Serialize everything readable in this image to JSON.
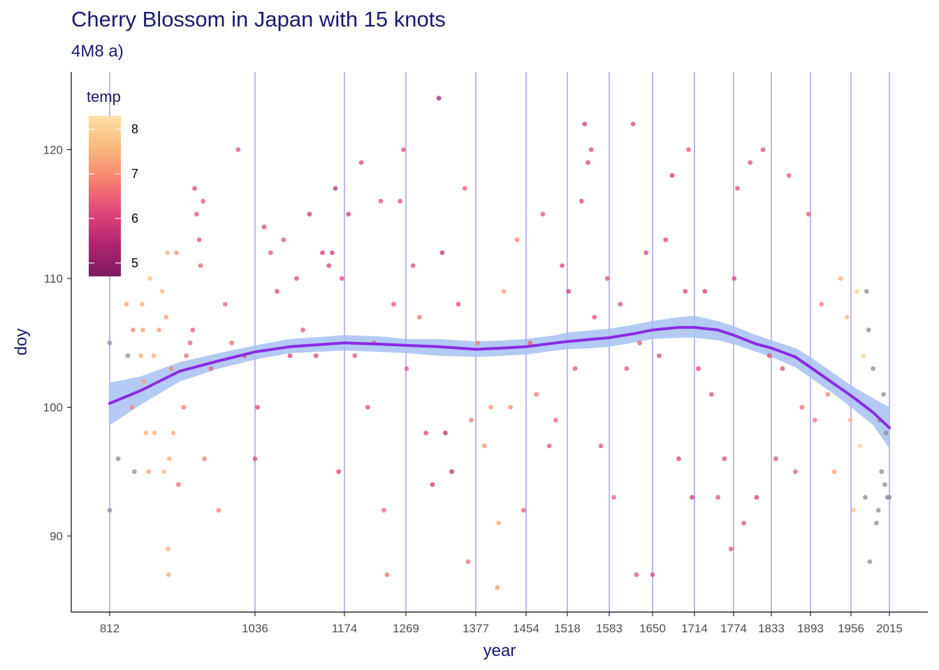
{
  "title": "Cherry Blossom in Japan with 15 knots",
  "subtitle": "4M8 a)",
  "chart_data": {
    "type": "scatter",
    "xlabel": "year",
    "ylabel": "doy",
    "xlim": [
      812,
      2015
    ],
    "ylim": [
      84.5,
      126.5
    ],
    "x_ticks": [
      812,
      1036,
      1174,
      1269,
      1377,
      1454,
      1518,
      1583,
      1650,
      1714,
      1774,
      1833,
      1893,
      1956,
      2015
    ],
    "y_ticks": [
      90,
      100,
      110,
      120
    ],
    "knots": [
      812,
      1036,
      1174,
      1269,
      1377,
      1454,
      1518,
      1583,
      1650,
      1714,
      1774,
      1833,
      1893,
      1956,
      2015
    ],
    "grid": false,
    "legend": {
      "title": "temp",
      "placement": "top-left",
      "min": 4.7,
      "max": 8.3,
      "labels": [
        5,
        6,
        7,
        8
      ]
    },
    "colors": {
      "knot_line": "#9b8ff0",
      "band": "#a7c1f2",
      "fit_line": "#8a2be2",
      "missing_temp": "#8c8c8c",
      "gradient": [
        "#7b1b63",
        "#b0256f",
        "#e0457a",
        "#f6806e",
        "#f9b87c",
        "#fde0a6"
      ]
    },
    "fit": [
      [
        812,
        100.3
      ],
      [
        860,
        101.3
      ],
      [
        920,
        102.8
      ],
      [
        980,
        103.6
      ],
      [
        1036,
        104.3
      ],
      [
        1090,
        104.7
      ],
      [
        1174,
        105.0
      ],
      [
        1230,
        104.9
      ],
      [
        1269,
        104.8
      ],
      [
        1320,
        104.7
      ],
      [
        1377,
        104.5
      ],
      [
        1420,
        104.6
      ],
      [
        1454,
        104.7
      ],
      [
        1500,
        105.0
      ],
      [
        1518,
        105.1
      ],
      [
        1560,
        105.3
      ],
      [
        1583,
        105.4
      ],
      [
        1620,
        105.7
      ],
      [
        1650,
        106.0
      ],
      [
        1690,
        106.2
      ],
      [
        1714,
        106.2
      ],
      [
        1750,
        106.0
      ],
      [
        1774,
        105.6
      ],
      [
        1810,
        104.9
      ],
      [
        1833,
        104.6
      ],
      [
        1870,
        103.9
      ],
      [
        1893,
        103.1
      ],
      [
        1930,
        101.8
      ],
      [
        1956,
        100.9
      ],
      [
        1990,
        99.6
      ],
      [
        2015,
        98.4
      ]
    ],
    "band_upper": [
      [
        812,
        101.9
      ],
      [
        860,
        102.4
      ],
      [
        920,
        103.5
      ],
      [
        980,
        104.2
      ],
      [
        1036,
        104.8
      ],
      [
        1090,
        105.3
      ],
      [
        1174,
        105.6
      ],
      [
        1230,
        105.5
      ],
      [
        1269,
        105.3
      ],
      [
        1320,
        105.3
      ],
      [
        1377,
        105.1
      ],
      [
        1420,
        105.2
      ],
      [
        1454,
        105.3
      ],
      [
        1500,
        105.6
      ],
      [
        1518,
        105.8
      ],
      [
        1560,
        106.0
      ],
      [
        1583,
        106.1
      ],
      [
        1620,
        106.4
      ],
      [
        1650,
        106.7
      ],
      [
        1690,
        107.0
      ],
      [
        1714,
        107.1
      ],
      [
        1750,
        106.7
      ],
      [
        1774,
        106.3
      ],
      [
        1810,
        105.6
      ],
      [
        1833,
        105.2
      ],
      [
        1870,
        104.6
      ],
      [
        1893,
        103.9
      ],
      [
        1930,
        102.6
      ],
      [
        1956,
        101.7
      ],
      [
        1990,
        100.7
      ],
      [
        2015,
        100.0
      ]
    ],
    "band_lower": [
      [
        812,
        98.6
      ],
      [
        860,
        100.2
      ],
      [
        920,
        102.0
      ],
      [
        980,
        103.0
      ],
      [
        1036,
        103.7
      ],
      [
        1090,
        104.2
      ],
      [
        1174,
        104.4
      ],
      [
        1230,
        104.3
      ],
      [
        1269,
        104.2
      ],
      [
        1320,
        104.0
      ],
      [
        1377,
        103.9
      ],
      [
        1420,
        104.0
      ],
      [
        1454,
        104.1
      ],
      [
        1500,
        104.4
      ],
      [
        1518,
        104.5
      ],
      [
        1560,
        104.6
      ],
      [
        1583,
        104.7
      ],
      [
        1620,
        105.0
      ],
      [
        1650,
        105.3
      ],
      [
        1690,
        105.4
      ],
      [
        1714,
        105.4
      ],
      [
        1750,
        105.2
      ],
      [
        1774,
        104.9
      ],
      [
        1810,
        104.3
      ],
      [
        1833,
        103.9
      ],
      [
        1870,
        103.1
      ],
      [
        1893,
        102.3
      ],
      [
        1930,
        101.0
      ],
      [
        1956,
        100.0
      ],
      [
        1990,
        98.6
      ],
      [
        2015,
        96.8
      ]
    ],
    "points": [
      [
        812,
        92,
        null
      ],
      [
        812,
        105,
        null
      ],
      [
        825,
        96,
        null
      ],
      [
        838,
        108,
        7.3
      ],
      [
        840,
        104,
        null
      ],
      [
        846,
        100,
        7.0
      ],
      [
        848,
        106,
        6.9
      ],
      [
        850,
        95,
        null
      ],
      [
        860,
        104,
        7.4
      ],
      [
        862,
        108,
        7.5
      ],
      [
        863,
        106,
        7.3
      ],
      [
        865,
        102,
        7.3
      ],
      [
        868,
        98,
        7.5
      ],
      [
        872,
        95,
        7.3
      ],
      [
        874,
        110,
        7.6
      ],
      [
        880,
        104,
        7.5
      ],
      [
        881,
        98,
        7.5
      ],
      [
        888,
        106,
        7.2
      ],
      [
        893,
        109,
        7.5
      ],
      [
        896,
        95,
        7.6
      ],
      [
        899,
        107,
        7.2
      ],
      [
        901,
        112,
        7.5
      ],
      [
        902,
        89,
        7.4
      ],
      [
        903,
        87,
        7.4
      ],
      [
        904,
        96,
        7.5
      ],
      [
        907,
        103,
        6.9
      ],
      [
        910,
        98,
        7.4
      ],
      [
        915,
        112,
        7.1
      ],
      [
        918,
        94,
        6.6
      ],
      [
        926,
        100,
        6.8
      ],
      [
        930,
        104,
        6.6
      ],
      [
        936,
        105,
        6.5
      ],
      [
        940,
        106,
        6.4
      ],
      [
        943,
        117,
        6.1
      ],
      [
        946,
        115,
        6.3
      ],
      [
        950,
        113,
        6.3
      ],
      [
        952,
        111,
        6.5
      ],
      [
        956,
        116,
        6.3
      ],
      [
        958,
        96,
        6.8
      ],
      [
        968,
        103,
        6.5
      ],
      [
        980,
        92,
        6.8
      ],
      [
        990,
        108,
        6.5
      ],
      [
        1000,
        105,
        6.6
      ],
      [
        1010,
        120,
        6.3
      ],
      [
        1020,
        104,
        6.2
      ],
      [
        1036,
        96,
        6.2
      ],
      [
        1040,
        100,
        6.1
      ],
      [
        1050,
        114,
        6.0
      ],
      [
        1060,
        112,
        6.3
      ],
      [
        1070,
        109,
        6.1
      ],
      [
        1080,
        113,
        6.2
      ],
      [
        1090,
        104,
        6.0
      ],
      [
        1100,
        110,
        6.2
      ],
      [
        1110,
        106,
        6.3
      ],
      [
        1120,
        115,
        5.8
      ],
      [
        1130,
        104,
        6.1
      ],
      [
        1140,
        112,
        5.9
      ],
      [
        1150,
        111,
        6.0
      ],
      [
        1155,
        112,
        5.9
      ],
      [
        1160,
        117,
        5.6
      ],
      [
        1165,
        95,
        6.0
      ],
      [
        1170,
        110,
        6.3
      ],
      [
        1180,
        115,
        5.9
      ],
      [
        1190,
        104,
        6.4
      ],
      [
        1200,
        119,
        6.0
      ],
      [
        1210,
        100,
        6.2
      ],
      [
        1220,
        105,
        6.4
      ],
      [
        1230,
        116,
        6.3
      ],
      [
        1235,
        92,
        6.5
      ],
      [
        1240,
        87,
        6.6
      ],
      [
        1250,
        108,
        6.2
      ],
      [
        1260,
        116,
        6.3
      ],
      [
        1265,
        120,
        6.3
      ],
      [
        1270,
        103,
        6.4
      ],
      [
        1280,
        111,
        6.2
      ],
      [
        1290,
        107,
        6.6
      ],
      [
        1300,
        98,
        6.0
      ],
      [
        1310,
        94,
        5.8
      ],
      [
        1320,
        124,
        5.3
      ],
      [
        1325,
        112,
        5.6
      ],
      [
        1330,
        98,
        5.5
      ],
      [
        1340,
        95,
        5.6
      ],
      [
        1350,
        108,
        6.1
      ],
      [
        1360,
        117,
        6.4
      ],
      [
        1365,
        88,
        6.6
      ],
      [
        1370,
        99,
        6.8
      ],
      [
        1380,
        105,
        6.9
      ],
      [
        1390,
        97,
        7.1
      ],
      [
        1400,
        100,
        7.1
      ],
      [
        1410,
        86,
        7.2
      ],
      [
        1412,
        91,
        7.3
      ],
      [
        1420,
        109,
        7.2
      ],
      [
        1430,
        100,
        7.0
      ],
      [
        1440,
        113,
        6.9
      ],
      [
        1450,
        92,
        6.5
      ],
      [
        1460,
        105,
        6.5
      ],
      [
        1470,
        101,
        6.7
      ],
      [
        1480,
        115,
        6.3
      ],
      [
        1490,
        97,
        6.3
      ],
      [
        1500,
        99,
        6.4
      ],
      [
        1510,
        111,
        6.1
      ],
      [
        1520,
        109,
        5.9
      ],
      [
        1530,
        103,
        6.3
      ],
      [
        1540,
        116,
        6.1
      ],
      [
        1545,
        122,
        5.9
      ],
      [
        1550,
        119,
        6.0
      ],
      [
        1555,
        120,
        6.1
      ],
      [
        1560,
        107,
        6.2
      ],
      [
        1570,
        97,
        6.3
      ],
      [
        1580,
        110,
        6.3
      ],
      [
        1590,
        93,
        6.4
      ],
      [
        1600,
        108,
        6.2
      ],
      [
        1610,
        103,
        6.3
      ],
      [
        1620,
        122,
        6.1
      ],
      [
        1625,
        87,
        6.2
      ],
      [
        1630,
        105,
        6.3
      ],
      [
        1640,
        112,
        6.1
      ],
      [
        1650,
        87,
        6.1
      ],
      [
        1660,
        104,
        6.1
      ],
      [
        1670,
        113,
        6.0
      ],
      [
        1680,
        118,
        5.8
      ],
      [
        1690,
        96,
        6.0
      ],
      [
        1700,
        109,
        6.1
      ],
      [
        1705,
        120,
        6.3
      ],
      [
        1710,
        93,
        6.0
      ],
      [
        1720,
        103,
        6.1
      ],
      [
        1730,
        109,
        5.9
      ],
      [
        1740,
        101,
        6.2
      ],
      [
        1750,
        93,
        6.3
      ],
      [
        1760,
        96,
        6.1
      ],
      [
        1770,
        89,
        6.3
      ],
      [
        1775,
        110,
        6.1
      ],
      [
        1780,
        117,
        6.2
      ],
      [
        1790,
        91,
        6.3
      ],
      [
        1800,
        119,
        6.2
      ],
      [
        1810,
        93,
        6.0
      ],
      [
        1820,
        120,
        6.1
      ],
      [
        1830,
        104,
        6.1
      ],
      [
        1840,
        96,
        6.2
      ],
      [
        1850,
        103,
        6.2
      ],
      [
        1860,
        118,
        6.3
      ],
      [
        1870,
        95,
        6.5
      ],
      [
        1880,
        100,
        6.6
      ],
      [
        1890,
        115,
        6.4
      ],
      [
        1900,
        99,
        6.7
      ],
      [
        1910,
        108,
        6.8
      ],
      [
        1920,
        101,
        6.8
      ],
      [
        1930,
        95,
        7.3
      ],
      [
        1940,
        110,
        7.4
      ],
      [
        1950,
        107,
        7.6
      ],
      [
        1955,
        99,
        7.6
      ],
      [
        1960,
        92,
        7.7
      ],
      [
        1965,
        109,
        7.9
      ],
      [
        1970,
        97,
        8.0
      ],
      [
        1975,
        104,
        8.1
      ],
      [
        1978,
        93,
        null
      ],
      [
        1980,
        109,
        null
      ],
      [
        1983,
        106,
        null
      ],
      [
        1985,
        88,
        null
      ],
      [
        1990,
        103,
        null
      ],
      [
        1995,
        91,
        null
      ],
      [
        1998,
        92,
        null
      ],
      [
        2000,
        99,
        null
      ],
      [
        2003,
        95,
        null
      ],
      [
        2006,
        101,
        null
      ],
      [
        2008,
        94,
        null
      ],
      [
        2010,
        98,
        null
      ],
      [
        2012,
        93,
        null
      ],
      [
        2015,
        93,
        null
      ]
    ]
  }
}
